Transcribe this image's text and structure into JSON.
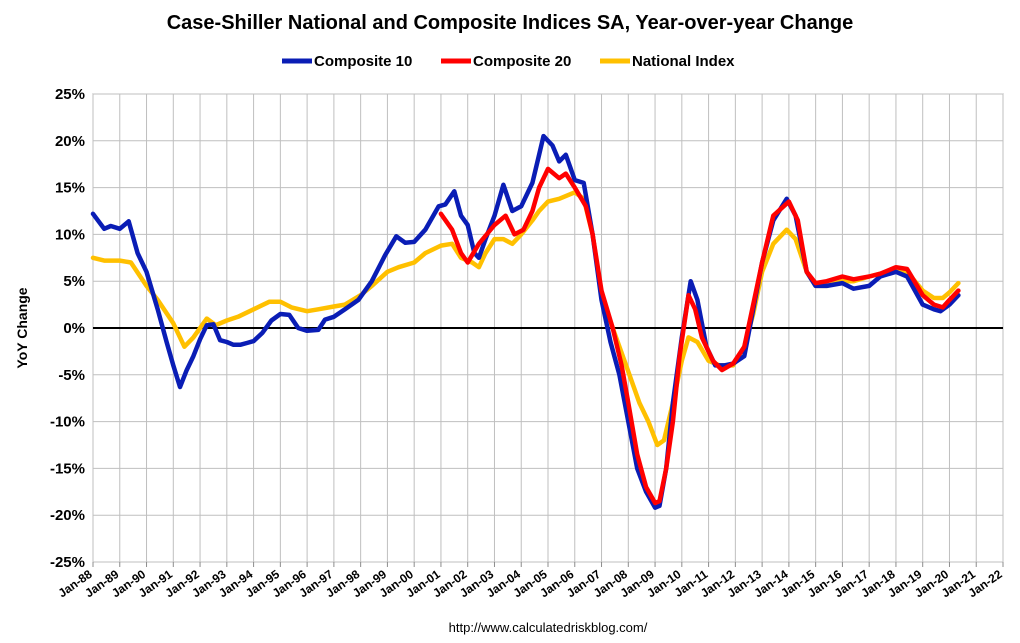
{
  "chart_data": {
    "type": "line",
    "title": "Case-Shiller National and Composite Indices SA, Year-over-year Change",
    "ylabel": "YoY Change",
    "xlabel": "",
    "source": "http://www.calculatedriskblog.com/",
    "ylim": [
      -25,
      25
    ],
    "xlim": [
      "1988-01",
      "2022-01"
    ],
    "y_ticks": [
      "25%",
      "20%",
      "15%",
      "10%",
      "5%",
      "0%",
      "-5%",
      "-10%",
      "-15%",
      "-20%",
      "-25%"
    ],
    "x_ticks": [
      "Jan-88",
      "Jan-89",
      "Jan-90",
      "Jan-91",
      "Jan-92",
      "Jan-93",
      "Jan-94",
      "Jan-95",
      "Jan-96",
      "Jan-97",
      "Jan-98",
      "Jan-99",
      "Jan-00",
      "Jan-01",
      "Jan-02",
      "Jan-03",
      "Jan-04",
      "Jan-05",
      "Jan-06",
      "Jan-07",
      "Jan-08",
      "Jan-09",
      "Jan-10",
      "Jan-11",
      "Jan-12",
      "Jan-13",
      "Jan-14",
      "Jan-15",
      "Jan-16",
      "Jan-17",
      "Jan-18",
      "Jan-19",
      "Jan-20",
      "Jan-21",
      "Jan-22"
    ],
    "grid": true,
    "legend_position": "top",
    "series": [
      {
        "name": "Composite 10",
        "color": "#0a1db5",
        "points": [
          [
            "1988-01",
            12.2
          ],
          [
            "1988-06",
            10.6
          ],
          [
            "1988-09",
            10.9
          ],
          [
            "1989-01",
            10.6
          ],
          [
            "1989-05",
            11.4
          ],
          [
            "1989-09",
            8.0
          ],
          [
            "1990-01",
            6.0
          ],
          [
            "1990-06",
            2.0
          ],
          [
            "1990-10",
            -1.5
          ],
          [
            "1991-01",
            -4.0
          ],
          [
            "1991-04",
            -6.3
          ],
          [
            "1991-07",
            -4.5
          ],
          [
            "1991-10",
            -3.0
          ],
          [
            "1992-01",
            -1.2
          ],
          [
            "1992-04",
            0.3
          ],
          [
            "1992-07",
            0.4
          ],
          [
            "1992-10",
            -1.3
          ],
          [
            "1993-01",
            -1.5
          ],
          [
            "1993-04",
            -1.8
          ],
          [
            "1993-07",
            -1.8
          ],
          [
            "1993-10",
            -1.6
          ],
          [
            "1994-01",
            -1.4
          ],
          [
            "1994-05",
            -0.5
          ],
          [
            "1994-09",
            0.8
          ],
          [
            "1995-01",
            1.5
          ],
          [
            "1995-05",
            1.4
          ],
          [
            "1995-09",
            0.0
          ],
          [
            "1996-01",
            -0.3
          ],
          [
            "1996-06",
            -0.2
          ],
          [
            "1996-09",
            0.9
          ],
          [
            "1997-01",
            1.2
          ],
          [
            "1997-06",
            2.0
          ],
          [
            "1997-12",
            3.0
          ],
          [
            "1998-06",
            5.0
          ],
          [
            "1998-12",
            7.8
          ],
          [
            "1999-05",
            9.8
          ],
          [
            "1999-09",
            9.1
          ],
          [
            "2000-01",
            9.2
          ],
          [
            "2000-06",
            10.5
          ],
          [
            "2000-12",
            13.0
          ],
          [
            "2001-03",
            13.2
          ],
          [
            "2001-07",
            14.6
          ],
          [
            "2001-10",
            12.0
          ],
          [
            "2002-01",
            11.0
          ],
          [
            "2002-04",
            8.0
          ],
          [
            "2002-06",
            7.5
          ],
          [
            "2002-09",
            9.5
          ],
          [
            "2003-01",
            12.0
          ],
          [
            "2003-05",
            15.3
          ],
          [
            "2003-09",
            12.5
          ],
          [
            "2004-01",
            13.0
          ],
          [
            "2004-06",
            15.5
          ],
          [
            "2004-09",
            18.5
          ],
          [
            "2004-11",
            20.5
          ],
          [
            "2005-03",
            19.5
          ],
          [
            "2005-06",
            17.8
          ],
          [
            "2005-09",
            18.5
          ],
          [
            "2006-01",
            15.8
          ],
          [
            "2006-05",
            15.5
          ],
          [
            "2006-09",
            10.0
          ],
          [
            "2007-01",
            3.0
          ],
          [
            "2007-05",
            -1.5
          ],
          [
            "2007-09",
            -5.0
          ],
          [
            "2008-01",
            -10.0
          ],
          [
            "2008-05",
            -15.0
          ],
          [
            "2008-09",
            -17.5
          ],
          [
            "2009-01",
            -19.2
          ],
          [
            "2009-03",
            -19.0
          ],
          [
            "2009-06",
            -15.0
          ],
          [
            "2009-09",
            -8.0
          ],
          [
            "2010-01",
            -1.0
          ],
          [
            "2010-05",
            5.0
          ],
          [
            "2010-08",
            3.0
          ],
          [
            "2010-12",
            -2.0
          ],
          [
            "2011-04",
            -4.0
          ],
          [
            "2011-08",
            -4.0
          ],
          [
            "2011-12",
            -3.8
          ],
          [
            "2012-05",
            -3.0
          ],
          [
            "2012-09",
            2.0
          ],
          [
            "2013-01",
            7.0
          ],
          [
            "2013-06",
            11.5
          ],
          [
            "2013-12",
            13.8
          ],
          [
            "2014-04",
            12.0
          ],
          [
            "2014-09",
            6.0
          ],
          [
            "2015-01",
            4.5
          ],
          [
            "2015-06",
            4.5
          ],
          [
            "2016-01",
            4.8
          ],
          [
            "2016-06",
            4.2
          ],
          [
            "2017-01",
            4.5
          ],
          [
            "2017-06",
            5.5
          ],
          [
            "2018-01",
            6.0
          ],
          [
            "2018-06",
            5.5
          ],
          [
            "2019-01",
            2.5
          ],
          [
            "2019-06",
            2.0
          ],
          [
            "2019-09",
            1.8
          ],
          [
            "2020-01",
            2.5
          ],
          [
            "2020-05",
            3.5
          ]
        ]
      },
      {
        "name": "Composite 20",
        "color": "#ff0000",
        "points": [
          [
            "2001-01",
            12.2
          ],
          [
            "2001-06",
            10.5
          ],
          [
            "2001-10",
            8.0
          ],
          [
            "2002-01",
            7.0
          ],
          [
            "2002-06",
            9.0
          ],
          [
            "2003-01",
            11.0
          ],
          [
            "2003-06",
            12.0
          ],
          [
            "2003-10",
            10.0
          ],
          [
            "2004-02",
            10.5
          ],
          [
            "2004-06",
            12.5
          ],
          [
            "2004-09",
            15.0
          ],
          [
            "2005-01",
            17.0
          ],
          [
            "2005-06",
            16.0
          ],
          [
            "2005-09",
            16.5
          ],
          [
            "2006-01",
            15.0
          ],
          [
            "2006-06",
            13.0
          ],
          [
            "2006-09",
            10.0
          ],
          [
            "2007-01",
            4.0
          ],
          [
            "2007-06",
            0.0
          ],
          [
            "2007-10",
            -4.0
          ],
          [
            "2008-01",
            -8.0
          ],
          [
            "2008-05",
            -13.5
          ],
          [
            "2008-09",
            -17.0
          ],
          [
            "2009-01",
            -18.7
          ],
          [
            "2009-03",
            -18.5
          ],
          [
            "2009-06",
            -15.0
          ],
          [
            "2009-09",
            -10.0
          ],
          [
            "2009-12",
            -3.0
          ],
          [
            "2010-04",
            3.5
          ],
          [
            "2010-07",
            2.0
          ],
          [
            "2010-10",
            -1.0
          ],
          [
            "2011-03",
            -3.5
          ],
          [
            "2011-07",
            -4.5
          ],
          [
            "2011-12",
            -3.8
          ],
          [
            "2012-05",
            -2.0
          ],
          [
            "2012-09",
            2.5
          ],
          [
            "2013-01",
            7.0
          ],
          [
            "2013-06",
            12.0
          ],
          [
            "2014-01",
            13.5
          ],
          [
            "2014-05",
            11.5
          ],
          [
            "2014-09",
            6.0
          ],
          [
            "2015-01",
            4.8
          ],
          [
            "2015-06",
            5.0
          ],
          [
            "2016-01",
            5.5
          ],
          [
            "2016-06",
            5.2
          ],
          [
            "2017-01",
            5.5
          ],
          [
            "2017-06",
            5.8
          ],
          [
            "2018-01",
            6.5
          ],
          [
            "2018-06",
            6.3
          ],
          [
            "2019-01",
            3.5
          ],
          [
            "2019-06",
            2.5
          ],
          [
            "2019-10",
            2.2
          ],
          [
            "2020-01",
            3.0
          ],
          [
            "2020-05",
            4.0
          ]
        ]
      },
      {
        "name": "National Index",
        "color": "#ffc000",
        "points": [
          [
            "1988-01",
            7.5
          ],
          [
            "1988-06",
            7.2
          ],
          [
            "1989-01",
            7.2
          ],
          [
            "1989-06",
            7.0
          ],
          [
            "1990-01",
            4.5
          ],
          [
            "1990-06",
            3.0
          ],
          [
            "1991-01",
            0.5
          ],
          [
            "1991-06",
            -2.0
          ],
          [
            "1991-10",
            -1.0
          ],
          [
            "1992-04",
            1.0
          ],
          [
            "1992-08",
            0.3
          ],
          [
            "1993-01",
            0.8
          ],
          [
            "1993-06",
            1.2
          ],
          [
            "1994-01",
            2.0
          ],
          [
            "1994-08",
            2.8
          ],
          [
            "1995-01",
            2.8
          ],
          [
            "1995-06",
            2.2
          ],
          [
            "1996-01",
            1.8
          ],
          [
            "1996-06",
            2.0
          ],
          [
            "1997-01",
            2.3
          ],
          [
            "1997-06",
            2.5
          ],
          [
            "1998-01",
            3.5
          ],
          [
            "1998-06",
            4.5
          ],
          [
            "1999-01",
            6.0
          ],
          [
            "1999-06",
            6.5
          ],
          [
            "2000-01",
            7.0
          ],
          [
            "2000-06",
            8.0
          ],
          [
            "2001-01",
            8.8
          ],
          [
            "2001-06",
            9.0
          ],
          [
            "2001-10",
            7.5
          ],
          [
            "2002-03",
            7.0
          ],
          [
            "2002-06",
            6.5
          ],
          [
            "2002-09",
            8.0
          ],
          [
            "2003-01",
            9.5
          ],
          [
            "2003-05",
            9.5
          ],
          [
            "2003-09",
            9.0
          ],
          [
            "2004-01",
            10.0
          ],
          [
            "2004-06",
            11.5
          ],
          [
            "2004-09",
            12.5
          ],
          [
            "2005-01",
            13.5
          ],
          [
            "2005-06",
            13.8
          ],
          [
            "2006-01",
            14.5
          ],
          [
            "2006-05",
            13.8
          ],
          [
            "2006-09",
            10.0
          ],
          [
            "2007-01",
            3.5
          ],
          [
            "2007-06",
            0.0
          ],
          [
            "2007-12",
            -4.0
          ],
          [
            "2008-06",
            -8.0
          ],
          [
            "2008-10",
            -10.0
          ],
          [
            "2009-02",
            -12.5
          ],
          [
            "2009-05",
            -12.0
          ],
          [
            "2009-09",
            -8.0
          ],
          [
            "2010-01",
            -3.5
          ],
          [
            "2010-04",
            -1.0
          ],
          [
            "2010-08",
            -1.5
          ],
          [
            "2011-01",
            -3.5
          ],
          [
            "2011-06",
            -4.0
          ],
          [
            "2011-12",
            -4.0
          ],
          [
            "2012-05",
            -2.0
          ],
          [
            "2012-09",
            1.5
          ],
          [
            "2013-01",
            6.0
          ],
          [
            "2013-06",
            9.0
          ],
          [
            "2013-12",
            10.5
          ],
          [
            "2014-04",
            9.5
          ],
          [
            "2014-09",
            6.0
          ],
          [
            "2015-01",
            4.5
          ],
          [
            "2015-06",
            4.5
          ],
          [
            "2016-01",
            5.0
          ],
          [
            "2016-06",
            5.0
          ],
          [
            "2017-01",
            5.5
          ],
          [
            "2017-06",
            5.8
          ],
          [
            "2018-01",
            6.2
          ],
          [
            "2018-06",
            6.0
          ],
          [
            "2019-01",
            4.0
          ],
          [
            "2019-06",
            3.2
          ],
          [
            "2019-10",
            3.2
          ],
          [
            "2020-01",
            3.8
          ],
          [
            "2020-05",
            4.8
          ]
        ]
      }
    ]
  }
}
